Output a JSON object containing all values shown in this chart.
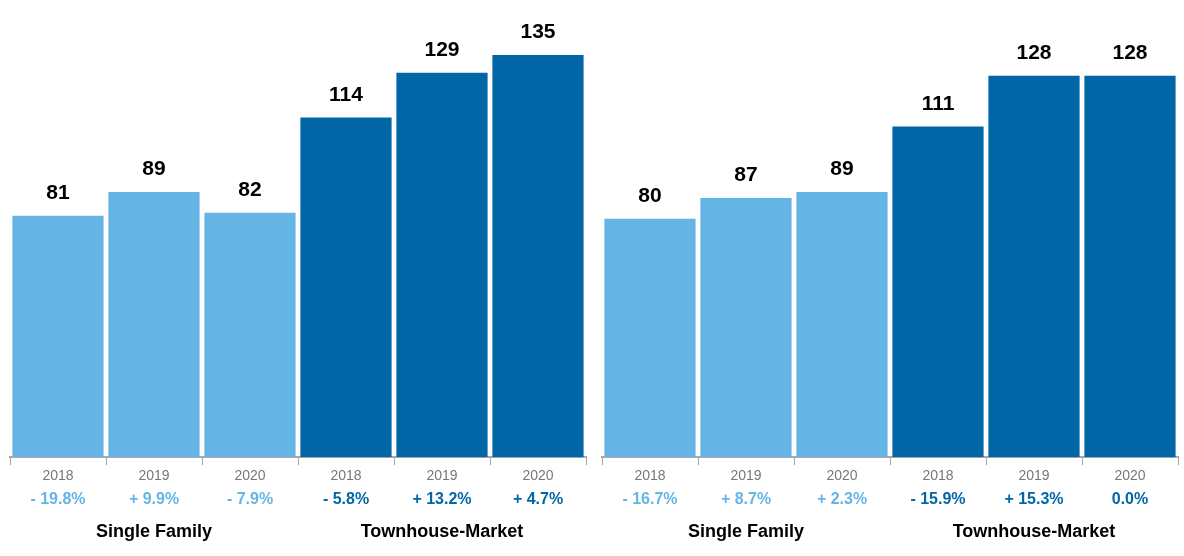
{
  "chart_data": [
    {
      "type": "bar",
      "categories": [
        "2018",
        "2019",
        "2020",
        "2018",
        "2019",
        "2020"
      ],
      "values": [
        81,
        89,
        82,
        114,
        129,
        135
      ],
      "colors": [
        "#64b5e6",
        "#64b5e6",
        "#64b5e6",
        "#0066a6",
        "#0066a6",
        "#0066a6"
      ],
      "annotations": [
        "- 19.8%",
        "+ 9.9%",
        "- 7.9%",
        "- 5.8%",
        "+ 13.2%",
        "+ 4.7%",
        "Single Family",
        "Townhouse-Market"
      ],
      "data_labels": true,
      "tick_labels": "x",
      "grid": false,
      "legend": false
    },
    {
      "type": "bar",
      "categories": [
        "2018",
        "2019",
        "2020",
        "2018",
        "2019",
        "2020"
      ],
      "values": [
        80,
        87,
        89,
        111,
        128,
        128
      ],
      "colors": [
        "#64b5e6",
        "#64b5e6",
        "#64b5e6",
        "#0066a6",
        "#0066a6",
        "#0066a6"
      ],
      "annotations": [
        "- 16.7%",
        "+ 8.7%",
        "+ 2.3%",
        "- 15.9%",
        "+ 15.3%",
        "0.0%",
        "Single Family",
        "Townhouse-Market"
      ],
      "data_labels": true,
      "tick_labels": "x",
      "grid": false,
      "legend": false
    }
  ]
}
